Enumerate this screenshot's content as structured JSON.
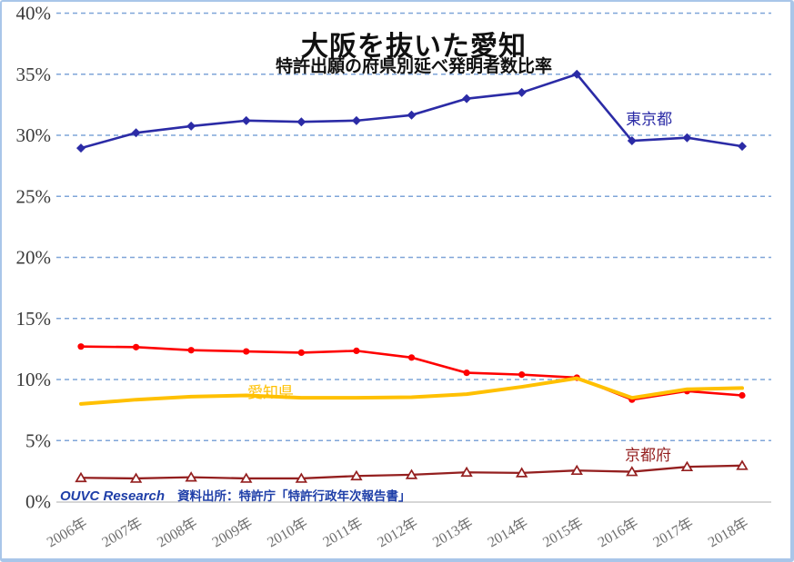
{
  "frame": {
    "border_color": "#A9C6E9",
    "background": "#FFFFFF"
  },
  "chart_data": {
    "type": "line",
    "title": "大阪を抜いた愛知",
    "subtitle": "特許出願の府県別延べ発明者数比率",
    "x": [
      "2006年",
      "2007年",
      "2008年",
      "2009年",
      "2010年",
      "2011年",
      "2012年",
      "2013年",
      "2014年",
      "2015年",
      "2016年",
      "2017年",
      "2018年"
    ],
    "xlabel": "",
    "ylabel": "",
    "ylim": [
      0,
      40
    ],
    "yticks": [
      40,
      35,
      30,
      25,
      20,
      15,
      10,
      5,
      0
    ],
    "ytick_suffix": "%",
    "grid": "horizontal-dashed",
    "gridline_color": "#7FA5D8",
    "axis_line_color": "#C9C9C9",
    "ytick_label_color": "#3A3A3A",
    "xtick_label_color": "#6E6E6E",
    "legend_position": "inline-labels-on-lines",
    "series": [
      {
        "id": "tokyo",
        "label_text": "東京都",
        "color": "#2B2BA6",
        "marker": "diamond",
        "line_width": 2.6,
        "values": [
          28.95,
          30.2,
          30.75,
          31.2,
          31.1,
          31.2,
          31.65,
          33.0,
          33.5,
          35.0,
          29.55,
          29.8,
          29.1
        ],
        "label_anchor": {
          "x_index": 9.89,
          "value": 30.9
        }
      },
      {
        "id": "series-red-unlabeled",
        "label_text": "",
        "color": "#FE0000",
        "marker": "circle",
        "line_width": 2.6,
        "values": [
          12.7,
          12.65,
          12.4,
          12.3,
          12.2,
          12.35,
          11.8,
          10.55,
          10.4,
          10.15,
          8.35,
          9.05,
          8.7
        ],
        "label_anchor": null
      },
      {
        "id": "aichi",
        "label_text": "愛知県",
        "color": "#FFC000",
        "marker": "none",
        "line_width": 4,
        "values": [
          8.0,
          8.35,
          8.6,
          8.7,
          8.5,
          8.5,
          8.55,
          8.8,
          9.4,
          10.1,
          8.5,
          9.2,
          9.3
        ],
        "label_anchor": {
          "x_index": 3.02,
          "value": 8.5
        }
      },
      {
        "id": "kyoto",
        "label_text": "京都府",
        "color": "#941F1F",
        "marker": "triangle-open",
        "line_width": 2.3,
        "values": [
          1.95,
          1.9,
          2.0,
          1.9,
          1.9,
          2.1,
          2.2,
          2.4,
          2.35,
          2.55,
          2.45,
          2.85,
          2.95
        ],
        "label_anchor": {
          "x_index": 9.87,
          "value": 3.4
        }
      }
    ]
  },
  "footer": {
    "brand": "OUVC Research",
    "source": "資料出所：特許庁「特許行政年次報告書」"
  }
}
